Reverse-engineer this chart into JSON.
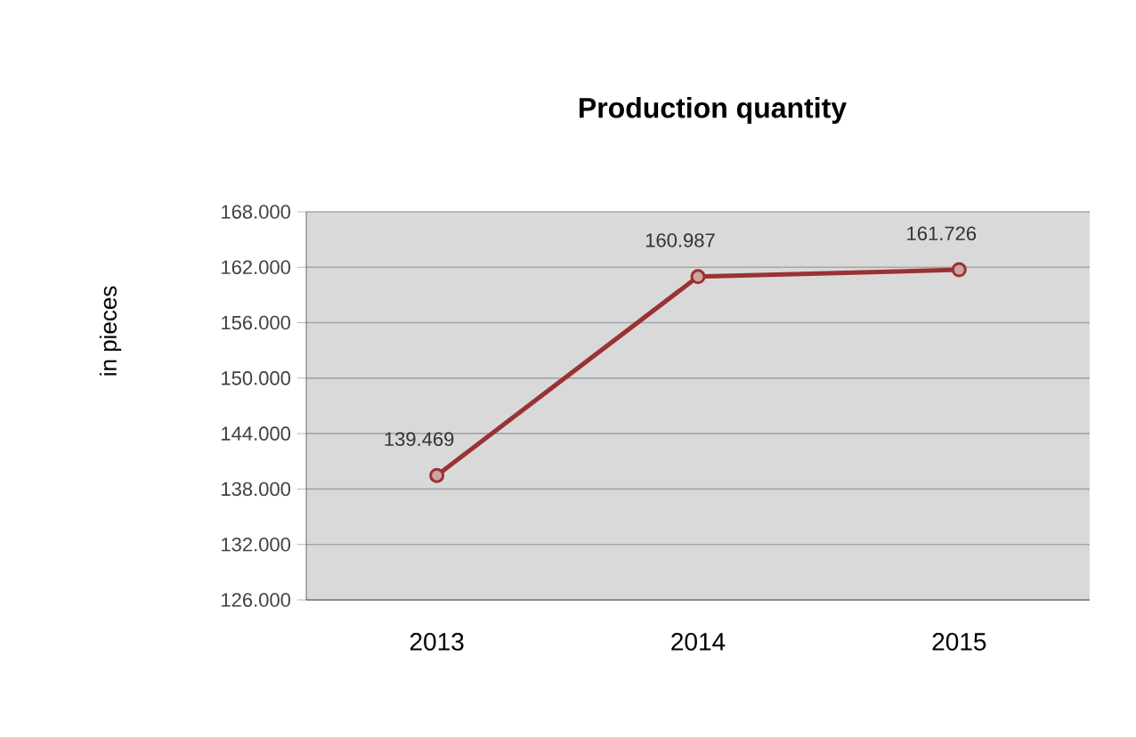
{
  "chart_data": {
    "type": "line",
    "title": "Production quantity",
    "ylabel": "in pieces",
    "categories": [
      "2013",
      "2014",
      "2015"
    ],
    "series": [
      {
        "color": "#993333",
        "values": [
          139469,
          160987,
          161726
        ],
        "value_labels": [
          "139.469",
          "160.987",
          "161.726"
        ]
      }
    ],
    "ylim": [
      126000,
      168000
    ],
    "yticks": [
      {
        "value": 126000,
        "label": "126.000"
      },
      {
        "value": 132000,
        "label": "132.000"
      },
      {
        "value": 138000,
        "label": "138.000"
      },
      {
        "value": 144000,
        "label": "144.000"
      },
      {
        "value": 150000,
        "label": "150.000"
      },
      {
        "value": 156000,
        "label": "156.000"
      },
      {
        "value": 162000,
        "label": "162.000"
      },
      {
        "value": 168000,
        "label": "168.000"
      }
    ],
    "grid": "y",
    "marker": "circle",
    "line_style": "solid"
  }
}
